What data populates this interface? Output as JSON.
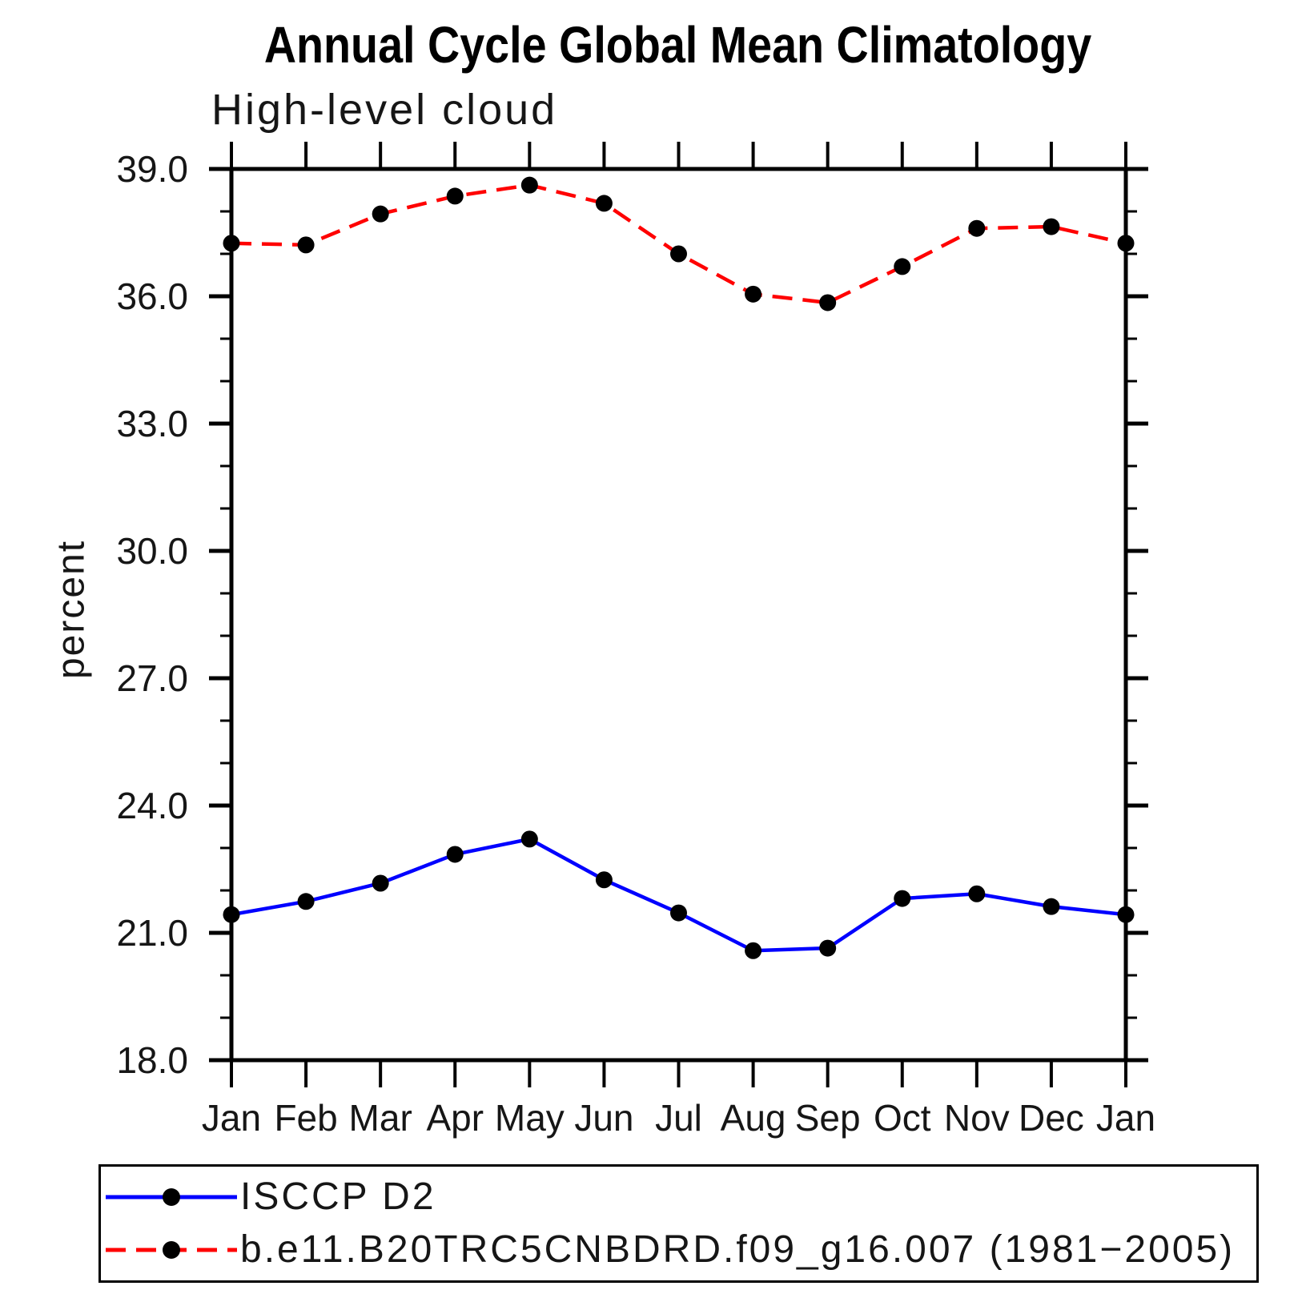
{
  "chart_data": {
    "type": "line",
    "title": "Annual Cycle Global Mean Climatology",
    "subtitle": "High-level cloud",
    "ylabel": "percent",
    "xlabel": "",
    "categories": [
      "Jan",
      "Feb",
      "Mar",
      "Apr",
      "May",
      "Jun",
      "Jul",
      "Aug",
      "Sep",
      "Oct",
      "Nov",
      "Dec",
      "Jan"
    ],
    "y_tick_labels": [
      "18.0",
      "21.0",
      "24.0",
      "27.0",
      "30.0",
      "33.0",
      "36.0",
      "39.0"
    ],
    "ylim": [
      18.0,
      39.0
    ],
    "y_major_step": 3.0,
    "y_minor_step": 1.0,
    "grid": false,
    "legend_position": "bottom-left-box",
    "axis_color": "#000000",
    "series": [
      {
        "name": "ISCCP D2",
        "color": "#0000ff",
        "line_style": "solid",
        "marker": "filled-circle",
        "marker_color": "#000000",
        "values": [
          21.43,
          21.74,
          22.17,
          22.85,
          23.21,
          22.25,
          21.47,
          20.58,
          20.64,
          21.81,
          21.92,
          21.62,
          21.43
        ]
      },
      {
        "name": "b.e11.B20TRC5CNBDRD.f09_g16.007 (1981−2005)",
        "color": "#ff0000",
        "line_style": "dashed",
        "marker": "filled-circle",
        "marker_color": "#000000",
        "values": [
          37.25,
          37.21,
          37.94,
          38.36,
          38.62,
          38.19,
          37.0,
          36.05,
          35.85,
          36.7,
          37.6,
          37.64,
          37.25
        ]
      }
    ]
  }
}
